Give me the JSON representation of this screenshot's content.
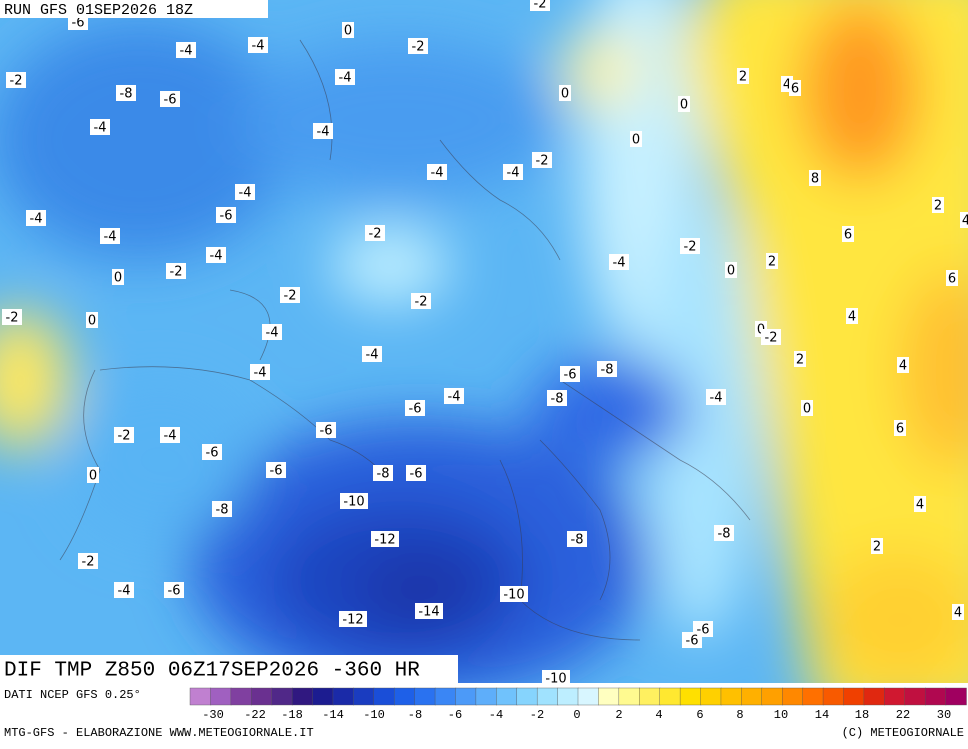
{
  "header": {
    "run": "RUN GFS 01SEP2026 18Z"
  },
  "map": {
    "contour_labels": [
      "-6",
      "-2",
      "0",
      "-4",
      "-4",
      "-2",
      "-2",
      "-8",
      "-6",
      "-4",
      "0",
      "2",
      "4",
      "6",
      "0",
      "-4",
      "-4",
      "0",
      "-2",
      "-4",
      "-4",
      "8",
      "-4",
      "-6",
      "-4",
      "2",
      "4",
      "-2",
      "-4",
      "-2",
      "6",
      "-4",
      "-2",
      "-4",
      "0",
      "2",
      "6",
      "0",
      "-2",
      "-2",
      "-2",
      "0",
      "4",
      "-4",
      "0",
      "-2",
      "-4",
      "2",
      "-4",
      "-6",
      "-8",
      "4",
      "-4",
      "-8",
      "-4",
      "-6",
      "0",
      "-6",
      "-2",
      "-4",
      "6",
      "-6",
      "-6",
      "-8",
      "-6",
      "0",
      "-10",
      "-8",
      "4",
      "-12",
      "-8",
      "-8",
      "2",
      "-2",
      "-4",
      "-6",
      "-10",
      "-14",
      "-12",
      "4",
      "-6",
      "-6",
      "-10"
    ]
  },
  "colorbar": {
    "colors": [
      "#c080d0",
      "#a060c0",
      "#8040a0",
      "#6a3090",
      "#502888",
      "#301880",
      "#1c1c90",
      "#1a2aa8",
      "#1a3cc0",
      "#1a4ed8",
      "#1e60e8",
      "#2a72f0",
      "#3a86f5",
      "#4c9af8",
      "#5eaefa",
      "#70c2fc",
      "#86d4fd",
      "#a0e2fe",
      "#bdeeff",
      "#d8f6ff",
      "#ffffc0",
      "#fffa90",
      "#fff060",
      "#ffe830",
      "#ffe000",
      "#ffd000",
      "#ffc000",
      "#ffb000",
      "#ffa000",
      "#ff8800",
      "#ff7000",
      "#f85a00",
      "#f04000",
      "#e02810",
      "#d01830",
      "#c01040",
      "#b00850",
      "#a00060"
    ],
    "labels": [
      "-30",
      "-22",
      "-18",
      "-14",
      "-10",
      "-8",
      "-6",
      "-4",
      "-2",
      "0",
      "2",
      "4",
      "6",
      "8",
      "10",
      "14",
      "18",
      "22",
      "30"
    ]
  },
  "footer": {
    "title": "DIF TMP Z850 06Z17SEP2026 -360 HR",
    "source": "DATI NCEP GFS 0.25°",
    "credit": "MTG-GFS - ELABORAZIONE WWW.METEOGIORNALE.IT",
    "copyright": "(C) METEOGIORNALE"
  }
}
